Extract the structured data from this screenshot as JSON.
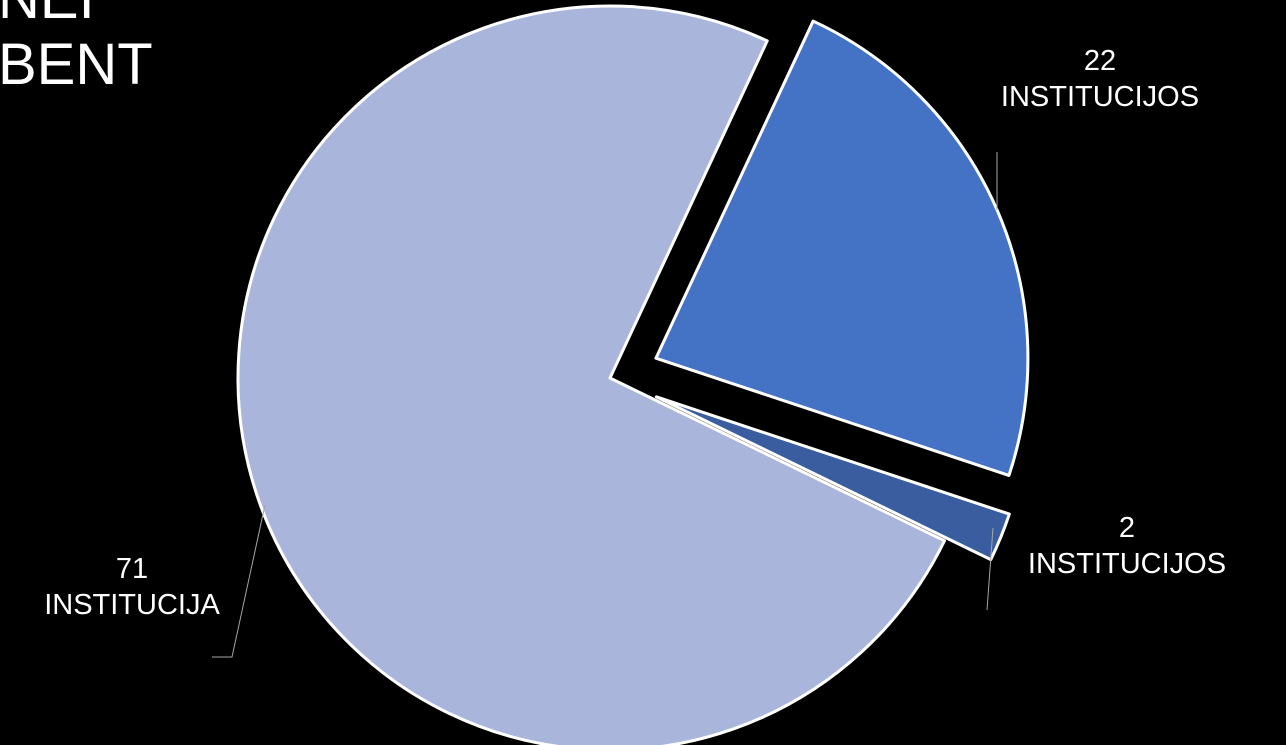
{
  "heading": {
    "line1": "NEI",
    "line2": "BENT"
  },
  "chart_data": {
    "type": "pie",
    "slices": [
      {
        "value": 71,
        "label_number": "71",
        "label_text": "INSTITUCIJA",
        "color": "#A9B5DA",
        "exploded": false
      },
      {
        "value": 22,
        "label_number": "22",
        "label_text": "INSTITUCIJOS",
        "color": "#4472C4",
        "exploded": true
      },
      {
        "value": 2,
        "label_number": "2",
        "label_text": "INSTITUCIJOS",
        "color": "#3A5DA0",
        "exploded": true
      }
    ],
    "slice_border_color": "#FFFFFF",
    "label_color": "#FFFFFF",
    "leader_line_color": "#A6A6A6",
    "background": "#000000"
  }
}
